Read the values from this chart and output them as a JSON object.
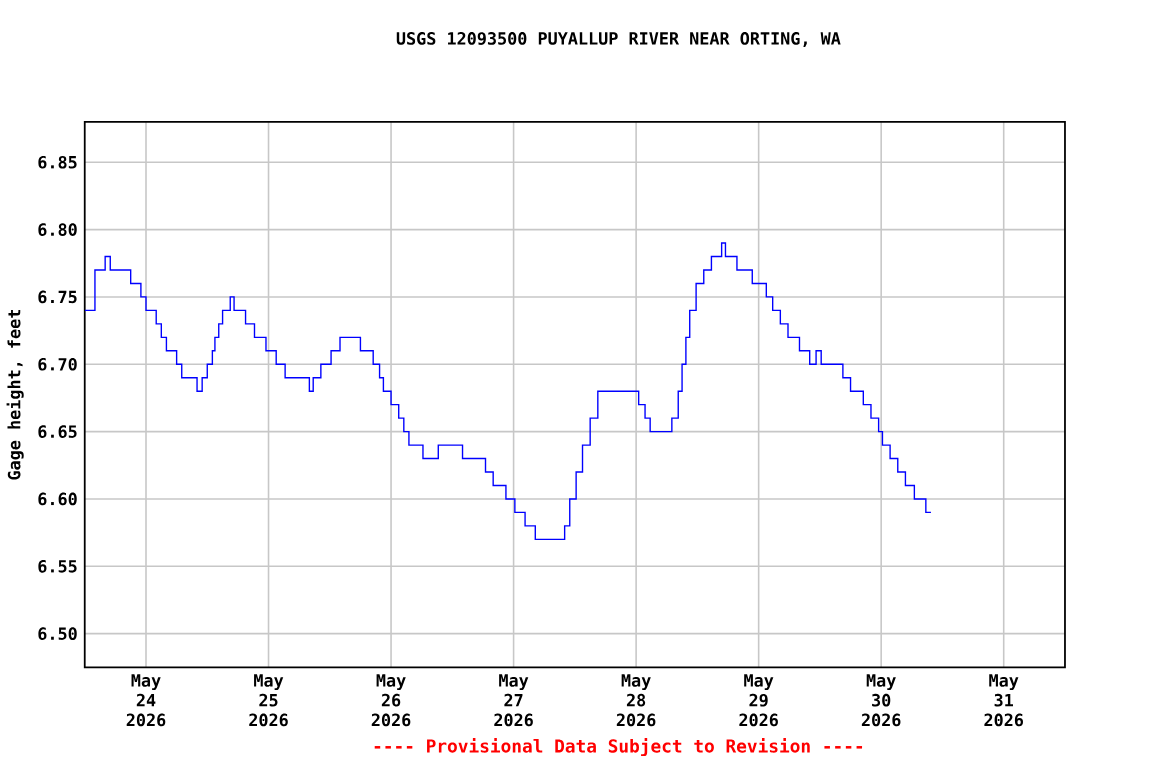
{
  "chart_data": {
    "type": "step",
    "title": "USGS 12093500 PUYALLUP RIVER NEAR ORTING, WA",
    "ylabel": "Gage height, feet",
    "annotations": [
      "---- Provisional Data Subject to Revision ----"
    ],
    "color": "#0000ff",
    "grid": true,
    "xlim": [
      "2026-05-23T12:00",
      "2026-05-31T12:00"
    ],
    "xticks": [
      {
        "value": "2026-05-24",
        "label": "May 24 2026"
      },
      {
        "value": "2026-05-25",
        "label": "May 25 2026"
      },
      {
        "value": "2026-05-26",
        "label": "May 26 2026"
      },
      {
        "value": "2026-05-27",
        "label": "May 27 2026"
      },
      {
        "value": "2026-05-28",
        "label": "May 28 2026"
      },
      {
        "value": "2026-05-29",
        "label": "May 29 2026"
      },
      {
        "value": "2026-05-30",
        "label": "May 30 2026"
      },
      {
        "value": "2026-05-31",
        "label": "May 31 2026"
      }
    ],
    "ylim": [
      6.475,
      6.88
    ],
    "yticks": [
      {
        "value": 6.5,
        "label": "6.50"
      },
      6.55,
      {
        "value": 6.6,
        "label": "6.60"
      },
      6.65,
      {
        "value": 6.7,
        "label": "6.70"
      },
      6.75,
      {
        "value": 6.8,
        "label": "6.80"
      },
      6.85
    ],
    "x": [
      "2026-05-23T12:00",
      "2026-05-23T14:00",
      "2026-05-23T16:00",
      "2026-05-23T17:00",
      "2026-05-23T20:00",
      "2026-05-23T21:00",
      "2026-05-23T23:00",
      "2026-05-24T00:00",
      "2026-05-24T02:00",
      "2026-05-24T03:00",
      "2026-05-24T04:00",
      "2026-05-24T06:00",
      "2026-05-24T07:00",
      "2026-05-24T10:00",
      "2026-05-24T11:00",
      "2026-05-24T12:00",
      "2026-05-24T13:00",
      "2026-05-24T13:30",
      "2026-05-24T14:15",
      "2026-05-24T15:00",
      "2026-05-24T16:30",
      "2026-05-24T17:15",
      "2026-05-24T19:30",
      "2026-05-24T21:15",
      "2026-05-24T23:30",
      "2026-05-25T01:30",
      "2026-05-25T03:15",
      "2026-05-25T08:00",
      "2026-05-25T08:45",
      "2026-05-25T10:15",
      "2026-05-25T12:15",
      "2026-05-25T14:00",
      "2026-05-25T17:15",
      "2026-05-25T18:00",
      "2026-05-25T20:30",
      "2026-05-25T21:45",
      "2026-05-25T22:30",
      "2026-05-26T00:00",
      "2026-05-26T01:30",
      "2026-05-26T02:30",
      "2026-05-26T03:30",
      "2026-05-26T06:15",
      "2026-05-26T09:15",
      "2026-05-26T14:00",
      "2026-05-26T18:30",
      "2026-05-26T20:00",
      "2026-05-26T22:30",
      "2026-05-27T00:15",
      "2026-05-27T02:15",
      "2026-05-27T04:15",
      "2026-05-27T09:30",
      "2026-05-27T10:00",
      "2026-05-27T11:00",
      "2026-05-27T12:15",
      "2026-05-27T13:30",
      "2026-05-27T15:00",
      "2026-05-27T16:30",
      "2026-05-27T23:45",
      "2026-05-28T00:30",
      "2026-05-28T01:45",
      "2026-05-28T02:45",
      "2026-05-28T06:45",
      "2026-05-28T07:00",
      "2026-05-28T08:15",
      "2026-05-28T09:00",
      "2026-05-28T09:45",
      "2026-05-28T10:30",
      "2026-05-28T11:45",
      "2026-05-28T13:15",
      "2026-05-28T14:45",
      "2026-05-28T16:45",
      "2026-05-28T17:30",
      "2026-05-28T19:45",
      "2026-05-28T22:45",
      "2026-05-29T01:30",
      "2026-05-29T02:45",
      "2026-05-29T04:15",
      "2026-05-29T05:45",
      "2026-05-29T08:00",
      "2026-05-29T10:00",
      "2026-05-29T11:15",
      "2026-05-29T12:15",
      "2026-05-29T16:30",
      "2026-05-29T18:00",
      "2026-05-29T20:30",
      "2026-05-29T22:00",
      "2026-05-29T23:30",
      "2026-05-30T00:15",
      "2026-05-30T01:45",
      "2026-05-30T03:15",
      "2026-05-30T04:45",
      "2026-05-30T06:30",
      "2026-05-30T08:45",
      "2026-05-30T09:45"
    ],
    "values": [
      6.74,
      6.77,
      6.78,
      6.77,
      6.77,
      6.76,
      6.75,
      6.74,
      6.73,
      6.72,
      6.71,
      6.7,
      6.69,
      6.68,
      6.69,
      6.7,
      6.71,
      6.72,
      6.73,
      6.74,
      6.75,
      6.74,
      6.73,
      6.72,
      6.71,
      6.7,
      6.69,
      6.68,
      6.69,
      6.7,
      6.71,
      6.72,
      6.72,
      6.71,
      6.7,
      6.69,
      6.68,
      6.67,
      6.66,
      6.65,
      6.64,
      6.63,
      6.64,
      6.63,
      6.62,
      6.61,
      6.6,
      6.59,
      6.58,
      6.57,
      6.57,
      6.58,
      6.6,
      6.62,
      6.64,
      6.66,
      6.68,
      6.68,
      6.67,
      6.66,
      6.65,
      6.65,
      6.66,
      6.68,
      6.7,
      6.72,
      6.74,
      6.76,
      6.77,
      6.78,
      6.79,
      6.78,
      6.77,
      6.76,
      6.75,
      6.74,
      6.73,
      6.72,
      6.71,
      6.7,
      6.71,
      6.7,
      6.69,
      6.68,
      6.67,
      6.66,
      6.65,
      6.64,
      6.63,
      6.62,
      6.61,
      6.6,
      6.59,
      6.59
    ]
  }
}
